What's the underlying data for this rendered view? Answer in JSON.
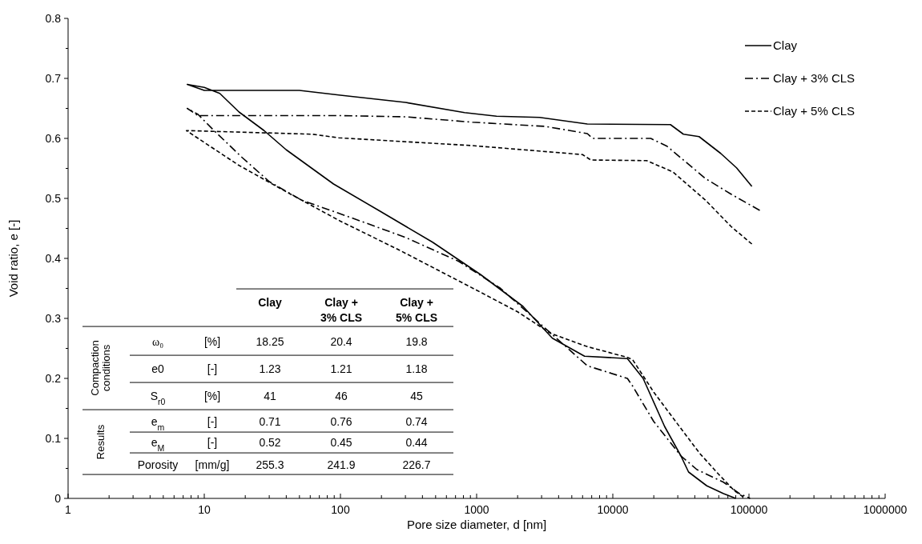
{
  "chart_data": {
    "type": "line",
    "xlabel": "Pore size diameter, d [nm]",
    "ylabel": "Void ratio, e [-]",
    "log": "x",
    "legend": "top right",
    "grid": false,
    "xlim": [
      1,
      1000000
    ],
    "ylim": [
      0,
      0.8
    ],
    "xticks": [
      1,
      {
        "value": 2,
        "label": null
      },
      {
        "value": 3,
        "label": null
      },
      {
        "value": 4,
        "label": null
      },
      {
        "value": 5,
        "label": null
      },
      {
        "value": 6,
        "label": null
      },
      {
        "value": 7,
        "label": null
      },
      {
        "value": 8,
        "label": null
      },
      {
        "value": 9,
        "label": null
      },
      10,
      {
        "value": 20,
        "label": null
      },
      {
        "value": 30,
        "label": null
      },
      {
        "value": 40,
        "label": null
      },
      {
        "value": 50,
        "label": null
      },
      {
        "value": 60,
        "label": null
      },
      {
        "value": 70,
        "label": null
      },
      {
        "value": 80,
        "label": null
      },
      {
        "value": 90,
        "label": null
      },
      100,
      {
        "value": 200,
        "label": null
      },
      {
        "value": 300,
        "label": null
      },
      {
        "value": 400,
        "label": null
      },
      {
        "value": 500,
        "label": null
      },
      {
        "value": 600,
        "label": null
      },
      {
        "value": 700,
        "label": null
      },
      {
        "value": 800,
        "label": null
      },
      {
        "value": 900,
        "label": null
      },
      1000,
      {
        "value": 2000,
        "label": null
      },
      {
        "value": 3000,
        "label": null
      },
      {
        "value": 4000,
        "label": null
      },
      {
        "value": 5000,
        "label": null
      },
      {
        "value": 6000,
        "label": null
      },
      {
        "value": 7000,
        "label": null
      },
      {
        "value": 8000,
        "label": null
      },
      {
        "value": 9000,
        "label": null
      },
      10000,
      {
        "value": 20000,
        "label": null
      },
      {
        "value": 30000,
        "label": null
      },
      {
        "value": 40000,
        "label": null
      },
      {
        "value": 50000,
        "label": null
      },
      {
        "value": 60000,
        "label": null
      },
      {
        "value": 70000,
        "label": null
      },
      {
        "value": 80000,
        "label": null
      },
      {
        "value": 90000,
        "label": null
      },
      100000,
      {
        "value": 200000,
        "label": null
      },
      {
        "value": 300000,
        "label": null
      },
      {
        "value": 400000,
        "label": null
      },
      {
        "value": 500000,
        "label": null
      },
      {
        "value": 600000,
        "label": null
      },
      {
        "value": 700000,
        "label": null
      },
      {
        "value": 800000,
        "label": null
      },
      {
        "value": 900000,
        "label": null
      },
      1000000
    ],
    "yticks": [
      0,
      {
        "value": 0.05,
        "label": null
      },
      0.1,
      {
        "value": 0.15,
        "label": null
      },
      0.2,
      {
        "value": 0.25,
        "label": null
      },
      0.3,
      {
        "value": 0.35,
        "label": null
      },
      0.4,
      {
        "value": 0.45,
        "label": null
      },
      0.5,
      {
        "value": 0.55,
        "label": null
      },
      0.6,
      {
        "value": 0.65,
        "label": null
      },
      0.7,
      {
        "value": 0.75,
        "label": null
      },
      0.8
    ],
    "series": [
      {
        "name": "Clay",
        "color": "#000000",
        "line_style": "solid",
        "x": [
          105000,
          81000,
          62000,
          43000,
          33000,
          26500,
          6500,
          2900,
          1400,
          815,
          300,
          100,
          50,
          10,
          7.5,
          10,
          13,
          18,
          27.5,
          40,
          89,
          191,
          475,
          1070,
          2190,
          3600,
          6200,
          12800,
          16700,
          24000,
          31600,
          36000,
          49000,
          65000,
          80000
        ],
        "values": [
          0.52,
          0.551,
          0.575,
          0.603,
          0.607,
          0.623,
          0.624,
          0.635,
          0.637,
          0.643,
          0.66,
          0.672,
          0.68,
          0.68,
          0.69,
          0.685,
          0.675,
          0.644,
          0.613,
          0.581,
          0.524,
          0.48,
          0.427,
          0.373,
          0.32,
          0.267,
          0.237,
          0.233,
          0.2,
          0.12,
          0.071,
          0.044,
          0.021,
          0.008,
          0
        ]
      },
      {
        "name": "Clay + 3% CLS",
        "color": "#000000",
        "line_style": "dashdot",
        "x": [
          120000,
          74000,
          48000,
          25000,
          19000,
          7100,
          6500,
          3200,
          930,
          300,
          100,
          9,
          7.5,
          9,
          11.8,
          19,
          30,
          52,
          123,
          300,
          740,
          1500,
          3600,
          6500,
          12800,
          14000,
          20000,
          26500,
          31600,
          41500,
          65000,
          85000,
          102000
        ],
        "values": [
          0.48,
          0.507,
          0.533,
          0.587,
          0.6,
          0.6,
          0.608,
          0.62,
          0.627,
          0.636,
          0.638,
          0.638,
          0.65,
          0.64,
          0.613,
          0.568,
          0.528,
          0.497,
          0.467,
          0.435,
          0.395,
          0.35,
          0.273,
          0.221,
          0.2,
          0.187,
          0.128,
          0.093,
          0.071,
          0.048,
          0.027,
          0.008,
          0
        ]
      },
      {
        "name": "Clay + 5% CLS",
        "color": "#000000",
        "line_style": "dashed",
        "x": [
          105000,
          74000,
          48000,
          27700,
          17700,
          6900,
          6000,
          930,
          97,
          62,
          7.4,
          11,
          18,
          40,
          100,
          190,
          275,
          1000,
          2000,
          3500,
          6500,
          12800,
          14000,
          20000,
          29000,
          43500,
          60000,
          78000,
          94000
        ],
        "values": [
          0.424,
          0.453,
          0.497,
          0.544,
          0.563,
          0.564,
          0.573,
          0.588,
          0.601,
          0.607,
          0.613,
          0.587,
          0.555,
          0.511,
          0.462,
          0.431,
          0.413,
          0.347,
          0.311,
          0.275,
          0.253,
          0.235,
          0.231,
          0.177,
          0.128,
          0.075,
          0.04,
          0.013,
          0
        ]
      }
    ],
    "annotations": [
      "Clay",
      "Clay + 3% CLS",
      "Clay + 5% CLS",
      "Compaction conditions",
      "Results",
      "ω₀",
      "[%]",
      "18.25",
      "20.4",
      "19.8",
      "e0",
      "[-]",
      "1.23",
      "1.21",
      "1.18",
      "S$_{r0}$",
      "[%]",
      "41",
      "46",
      "45",
      "e$_{m}$",
      "[-]",
      "0.71",
      "0.76",
      "0.74",
      "e$_{M}$",
      "[-]",
      "0.52",
      "0.45",
      "0.44",
      "Porosity",
      "[mm/g]",
      "255.3",
      "241.9",
      "226.7"
    ]
  }
}
